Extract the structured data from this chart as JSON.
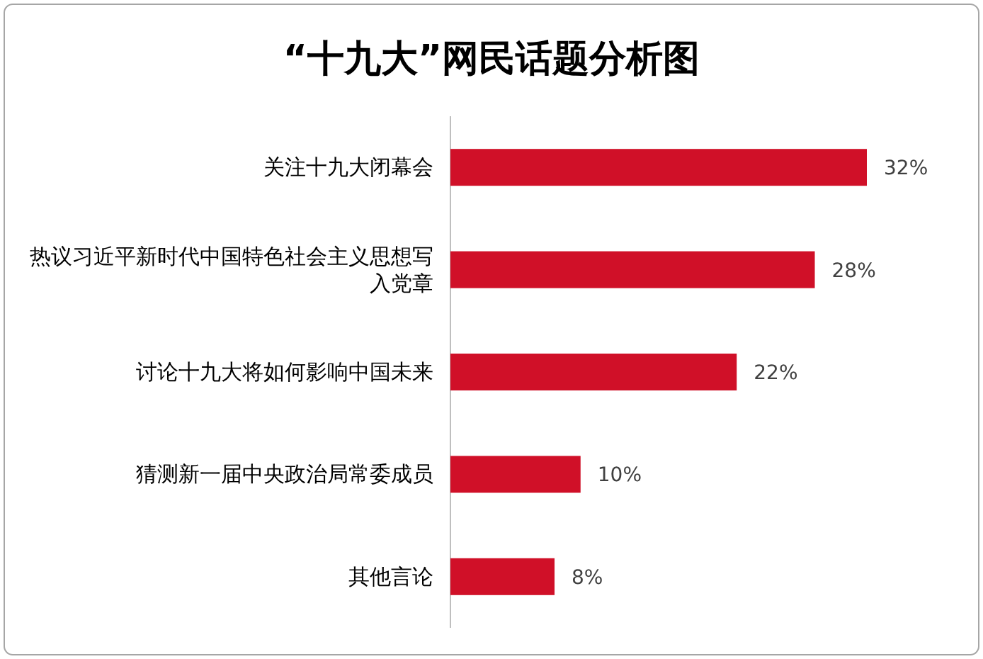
{
  "chart_data": {
    "type": "bar",
    "orientation": "horizontal",
    "title": "“十九大”网民话题分析图",
    "categories": [
      "关注十九大闭幕会",
      "热议习近平新时代中国特色社会主义思想写入党章",
      "讨论十九大将如何影响中国未来",
      "猜测新一届中央政治局常委成员",
      "其他言论"
    ],
    "values": [
      32,
      28,
      22,
      10,
      8
    ],
    "value_labels": [
      "32%",
      "28%",
      "22%",
      "10%",
      "8%"
    ],
    "color": "#d01028"
  }
}
